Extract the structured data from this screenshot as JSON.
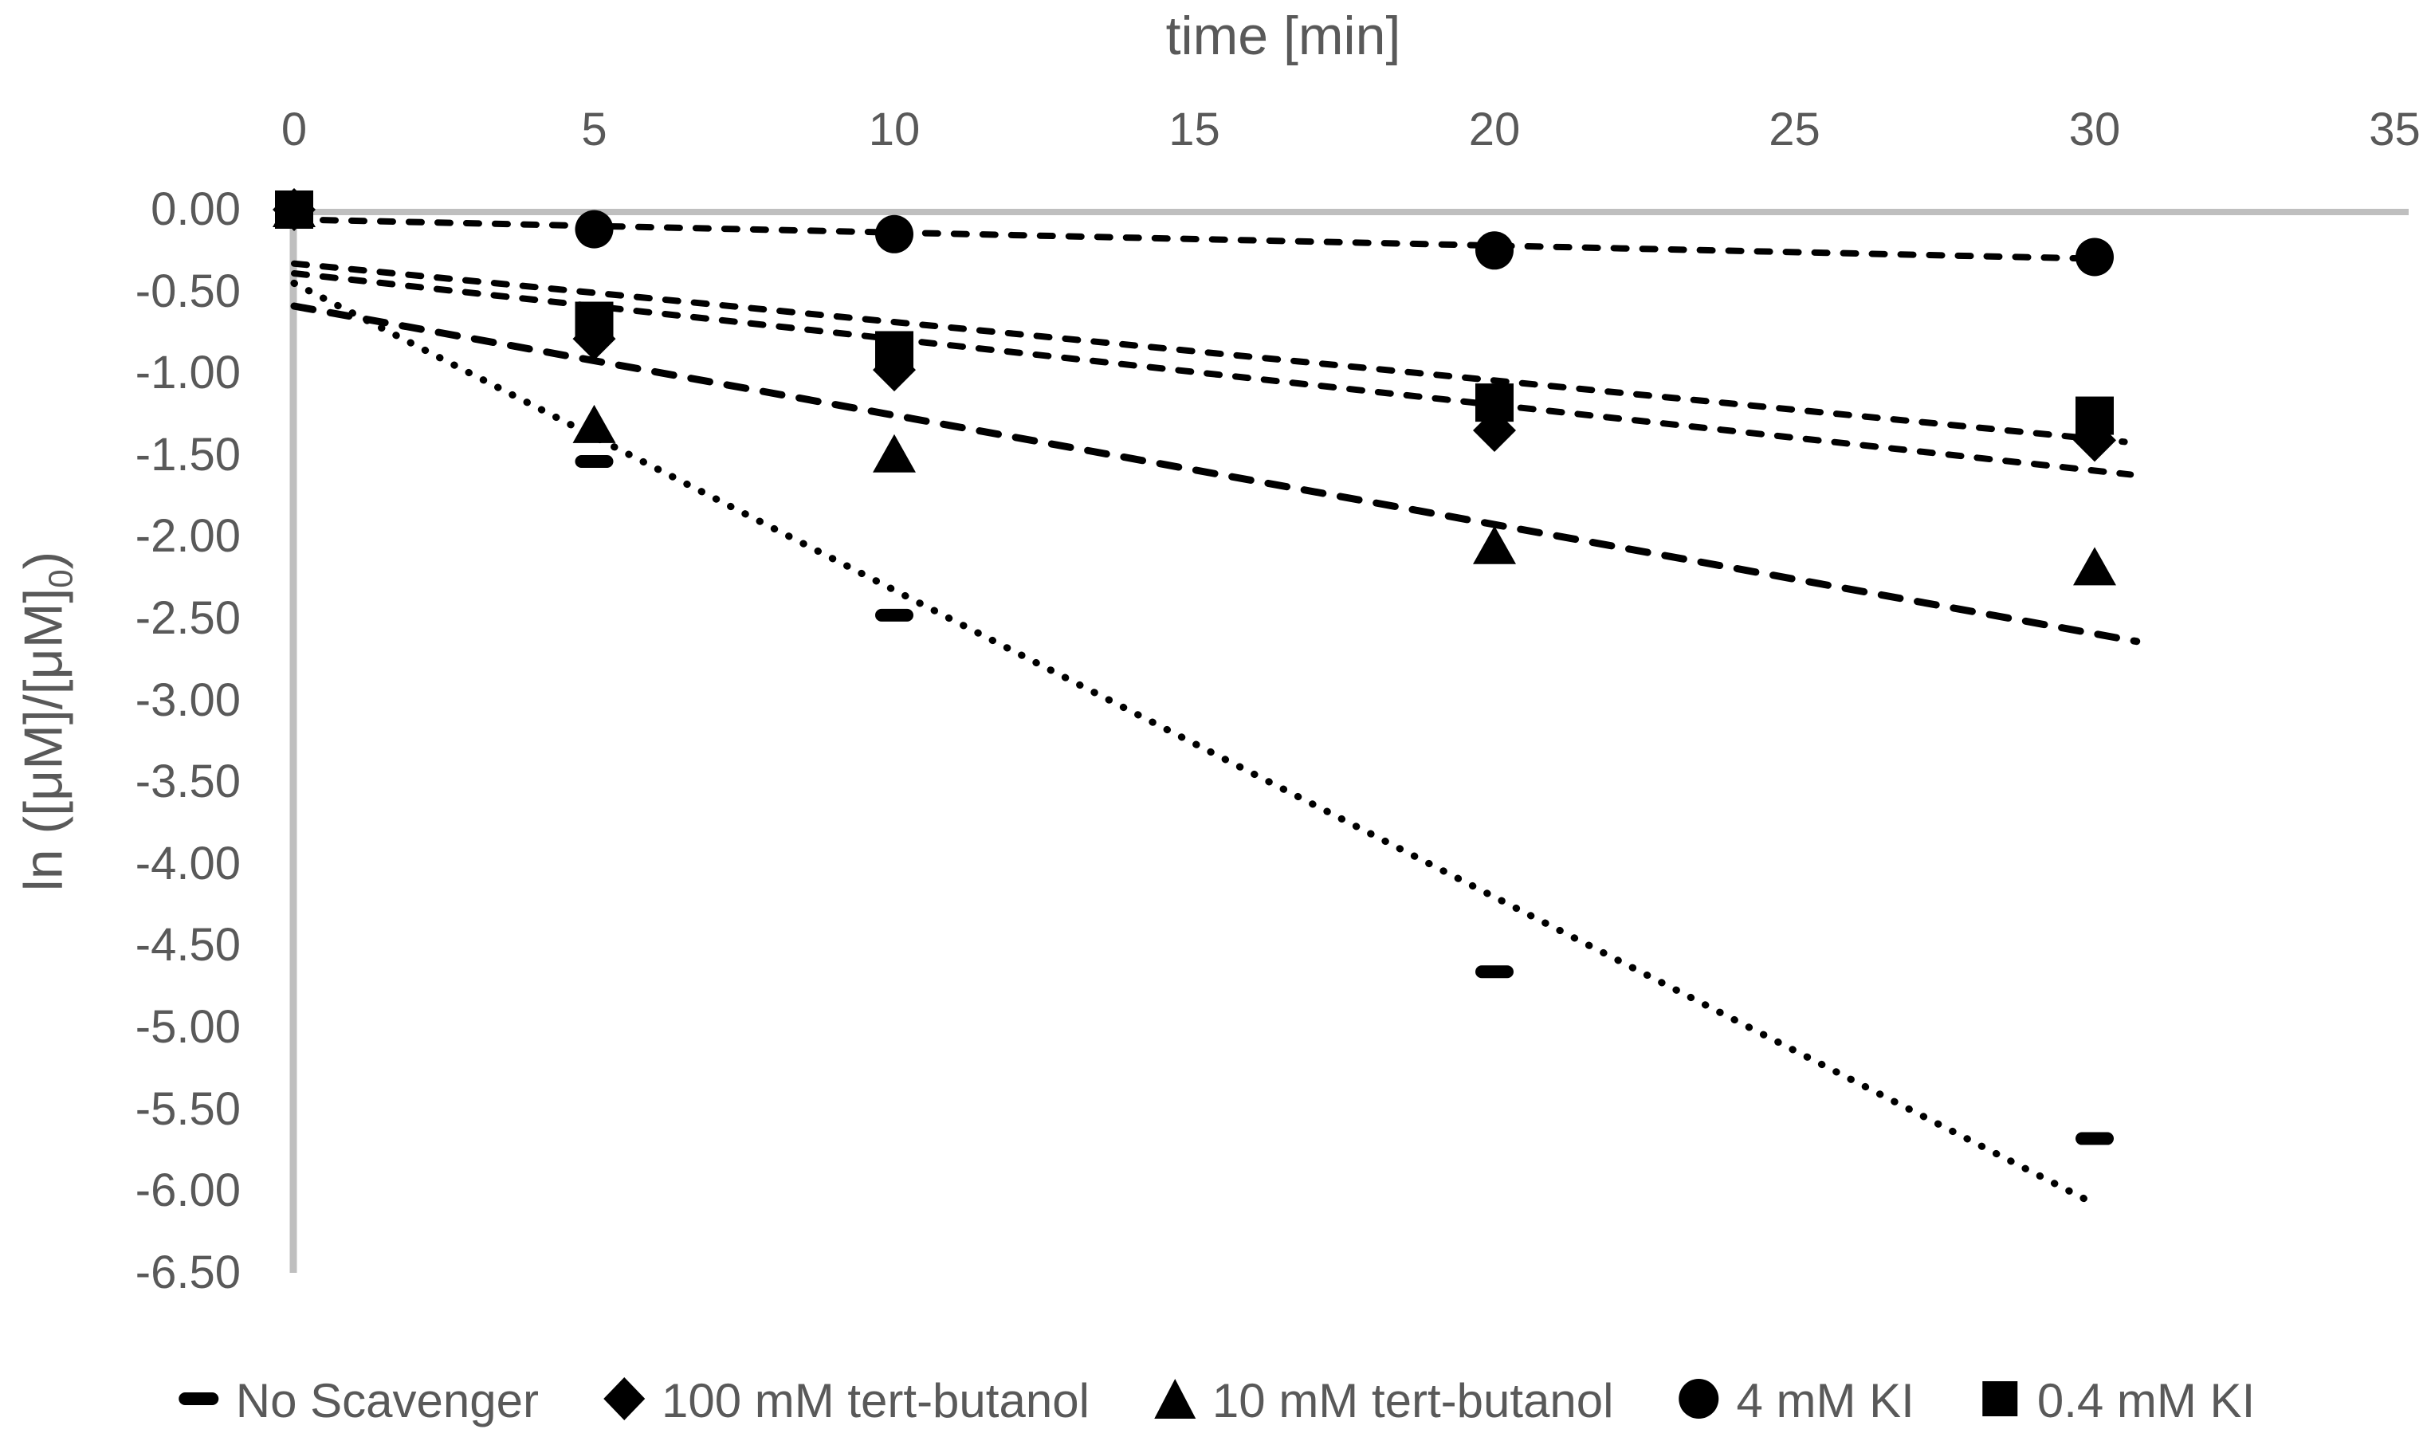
{
  "chart_data": {
    "type": "scatter",
    "title": "",
    "xlabel": "time [min]",
    "ylabel_prefix": "ln ([μM]/[μM]",
    "ylabel_sub": "0",
    "ylabel_suffix": ")",
    "xlim": [
      0,
      35
    ],
    "ylim": [
      0,
      -6.5
    ],
    "grid": false,
    "legend_position": "bottom",
    "x_tick_values": [
      0,
      5,
      10,
      15,
      20,
      25,
      30,
      35
    ],
    "x_tick_labels": [
      "0",
      "5",
      "10",
      "15",
      "20",
      "25",
      "30",
      "35"
    ],
    "y_tick_values": [
      0,
      -0.5,
      -1.0,
      -1.5,
      -2.0,
      -2.5,
      -3.0,
      -3.5,
      -4.0,
      -4.5,
      -5.0,
      -5.5,
      -6.0,
      -6.5
    ],
    "y_tick_labels": [
      "0.00",
      "-0.50",
      "-1.00",
      "-1.50",
      "-2.00",
      "-2.50",
      "-3.00",
      "-3.50",
      "-4.00",
      "-4.50",
      "-5.00",
      "-5.50",
      "-6.00",
      "-6.50"
    ],
    "series": [
      {
        "name": "No Scavenger",
        "marker": "dash",
        "line_style": "dotted",
        "points": [
          [
            0,
            0.0
          ],
          [
            5,
            -1.54
          ],
          [
            10,
            -2.48
          ],
          [
            20,
            -4.66
          ],
          [
            30,
            -5.68
          ]
        ],
        "trend": {
          "x": [
            0,
            30.0
          ],
          "y": [
            -0.45,
            -6.08
          ]
        }
      },
      {
        "name": "100 mM tert-butanol",
        "marker": "diamond",
        "line_style": "dashed",
        "points": [
          [
            0,
            0.0
          ],
          [
            5,
            -0.79
          ],
          [
            10,
            -0.98
          ],
          [
            20,
            -1.35
          ],
          [
            30,
            -1.41
          ]
        ],
        "trend": {
          "x": [
            0,
            30.6
          ],
          "y": [
            -0.39,
            -1.62
          ]
        }
      },
      {
        "name": "10 mM tert-butanol",
        "marker": "triangle",
        "line_style": "long-dash",
        "points": [
          [
            0,
            0.0
          ],
          [
            5,
            -1.32
          ],
          [
            10,
            -1.5
          ],
          [
            20,
            -2.06
          ],
          [
            30,
            -2.19
          ]
        ],
        "trend": {
          "x": [
            0,
            30.7
          ],
          "y": [
            -0.59,
            -2.64
          ]
        }
      },
      {
        "name": "4 mM KI",
        "marker": "circle",
        "line_style": "dashed",
        "points": [
          [
            0,
            0.0
          ],
          [
            5,
            -0.12
          ],
          [
            10,
            -0.15
          ],
          [
            20,
            -0.25
          ],
          [
            30,
            -0.29
          ]
        ],
        "trend": {
          "x": [
            0,
            30.0
          ],
          "y": [
            -0.06,
            -0.3
          ]
        }
      },
      {
        "name": "0.4 mM KI",
        "marker": "square",
        "line_style": "dashed",
        "points": [
          [
            0,
            0.0
          ],
          [
            5,
            -0.68
          ],
          [
            10,
            -0.86
          ],
          [
            20,
            -1.18
          ],
          [
            30,
            -1.26
          ]
        ],
        "trend": {
          "x": [
            0,
            30.5
          ],
          "y": [
            -0.33,
            -1.42
          ]
        }
      }
    ],
    "colors": {
      "marker": "#000000",
      "line": "#000000",
      "axis": "#BFBFBF",
      "text": "#595959"
    }
  }
}
